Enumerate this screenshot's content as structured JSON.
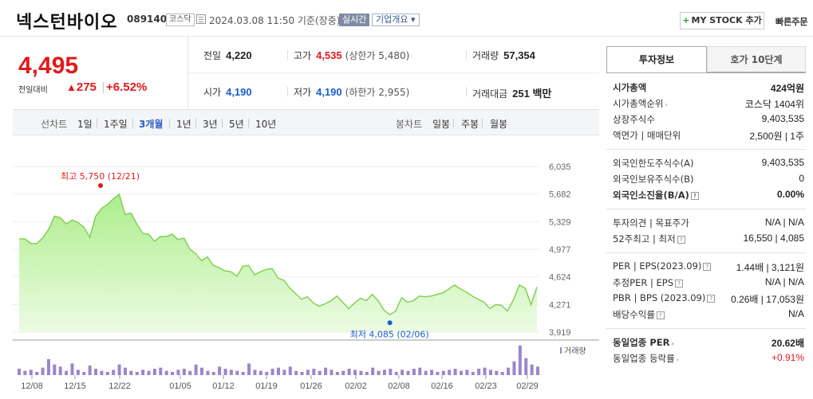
{
  "header": {
    "name": "넥스턴바이오",
    "code": "089140",
    "market": "코스닥",
    "datetime": "2024.03.08 11:50 기준(장중)",
    "realtime": "실시간",
    "company_overview": "기업개요 ▾",
    "mystock": "MY STOCK 추가",
    "quick_order": "빠른주문"
  },
  "price": {
    "current": "4,495",
    "change_label": "전일대비",
    "change_tri": "▲",
    "change": "275",
    "change_pct": "+6.52%"
  },
  "quotes": {
    "prev_label": "전일",
    "prev": "4,220",
    "high_label": "고가",
    "high": "4,535",
    "upper_limit": "(상한가 5,480)",
    "volume_label": "거래량",
    "volume": "57,354",
    "open_label": "시가",
    "open": "4,190",
    "low_label": "저가",
    "low": "4,190",
    "lower_limit": "(하한가 2,955)",
    "amount_label": "거래대금",
    "amount": "251 백만"
  },
  "toolbar": {
    "line_chart": "선차트",
    "periods": [
      "1일",
      "1주일",
      "3개월",
      "1년",
      "3년",
      "5년",
      "10년"
    ],
    "active_period": "3개월",
    "candle_chart": "봉차트",
    "candle_periods": [
      "일봉",
      "주봉",
      "월봉"
    ]
  },
  "chart_data": {
    "type": "area",
    "y_ticks": [
      "6,035",
      "5,682",
      "5,329",
      "4,977",
      "4,624",
      "4,271",
      "3,919"
    ],
    "ylim": [
      3919,
      6035
    ],
    "x_ticks": [
      "12/08",
      "12/15",
      "12/22",
      "01/05",
      "01/12",
      "01/19",
      "01/26",
      "02/02",
      "02/08",
      "02/16",
      "02/23",
      "02/29"
    ],
    "high_annotation": "최고 5,750 (12/21)",
    "low_annotation": "최저 4,085 (02/06)",
    "volume_legend": "거래량",
    "prices": [
      5110,
      5110,
      5050,
      5050,
      5120,
      5230,
      5400,
      5380,
      5300,
      5350,
      5320,
      5260,
      5130,
      5400,
      5500,
      5550,
      5620,
      5680,
      5420,
      5440,
      5300,
      5180,
      5170,
      5080,
      5140,
      5140,
      5170,
      5100,
      5120,
      4980,
      4920,
      4830,
      4880,
      4770,
      4740,
      4700,
      4690,
      4630,
      4760,
      4770,
      4650,
      4690,
      4720,
      4730,
      4610,
      4580,
      4480,
      4410,
      4340,
      4370,
      4290,
      4250,
      4280,
      4320,
      4380,
      4300,
      4220,
      4290,
      4350,
      4320,
      4400,
      4320,
      4200,
      4140,
      4190,
      4360,
      4300,
      4320,
      4380,
      4370,
      4380,
      4400,
      4420,
      4470,
      4520,
      4470,
      4430,
      4380,
      4340,
      4300,
      4220,
      4270,
      4260,
      4190,
      4330,
      4520,
      4480,
      4270,
      4495
    ],
    "volumes": [
      12,
      8,
      10,
      6,
      14,
      30,
      20,
      16,
      8,
      22,
      10,
      6,
      18,
      12,
      8,
      6,
      10,
      20,
      14,
      8,
      6,
      10,
      8,
      12,
      14,
      8,
      6,
      10,
      12,
      8,
      20,
      14,
      8,
      6,
      16,
      12,
      10,
      8,
      6,
      22,
      10,
      8,
      6,
      12,
      14,
      10,
      16,
      8,
      6,
      10,
      12,
      8,
      14,
      10,
      6,
      8,
      12,
      10,
      8,
      6,
      14,
      8,
      10,
      12,
      6,
      10,
      8,
      12,
      14,
      8,
      10,
      6,
      8,
      10,
      12,
      8,
      10,
      6,
      12,
      14,
      10,
      8,
      6,
      14,
      26,
      56,
      32,
      20,
      16
    ]
  },
  "sidebar": {
    "tab1": "투자정보",
    "tab2": "호가 10단계",
    "rows": [
      {
        "k": "시가총액",
        "v": "424억원",
        "bold": true
      },
      {
        "k": "시가총액순위",
        "v": "코스닥 1404위",
        "arrow": true
      },
      {
        "k": "상장주식수",
        "v": "9,403,535"
      },
      {
        "k": "액면가 | 매매단위",
        "v": "2,500원 | 1주"
      },
      {
        "k": "외국인한도주식수(A)",
        "v": "9,403,535"
      },
      {
        "k": "외국인보유주식수(B)",
        "v": "0"
      },
      {
        "k": "외국인소진율(B/A)",
        "v": "0.00%",
        "bold": true,
        "q": true
      },
      {
        "k": "투자의견 | 목표주가",
        "v": "N/A | N/A"
      },
      {
        "k": "52주최고 | 최저",
        "v": "16,550 | 4,085",
        "q": true
      },
      {
        "k": "PER | EPS(2023.09)",
        "v": "1.44배 | 3,121원",
        "q": true
      },
      {
        "k": "추정PER | EPS",
        "v": "N/A | N/A",
        "q": true
      },
      {
        "k": "PBR | BPS (2023.09)",
        "v": "0.26배 | 17,053원",
        "q": true
      },
      {
        "k": "배당수익률",
        "v": "N/A",
        "q": true
      },
      {
        "k": "동일업종 PER",
        "v": "20.62배",
        "bold": true,
        "arrow": true
      },
      {
        "k": "동일업종 등락률",
        "v": "+0.91%",
        "arrow": true,
        "red": true
      }
    ]
  }
}
